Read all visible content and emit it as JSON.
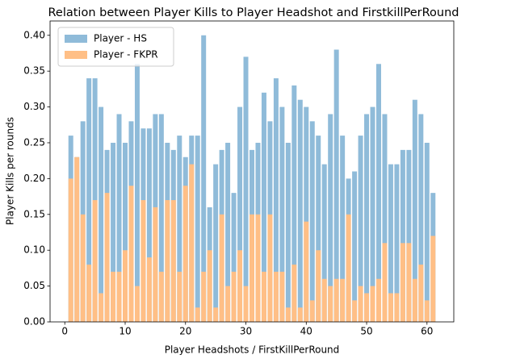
{
  "chart_data": {
    "type": "bar",
    "title": "Relation between Player Kills to Player Headshot and FirstkillPerRound",
    "x_label": "Player Headshots / FirstKillPerRound",
    "y_label": "Player Kills per rounds",
    "x": [
      1,
      2,
      3,
      4,
      5,
      6,
      7,
      8,
      9,
      10,
      11,
      12,
      13,
      14,
      15,
      16,
      17,
      18,
      19,
      20,
      21,
      22,
      23,
      24,
      25,
      26,
      27,
      28,
      29,
      30,
      31,
      32,
      33,
      34,
      35,
      36,
      37,
      38,
      39,
      40,
      41,
      42,
      43,
      44,
      45,
      46,
      47,
      48,
      49,
      50,
      51,
      52,
      53,
      54,
      55,
      56,
      57,
      58,
      59,
      60,
      61
    ],
    "series": [
      {
        "name": "Player - HS",
        "color": "#8fbbd9",
        "values": [
          0.26,
          0.23,
          0.28,
          0.34,
          0.34,
          0.3,
          0.24,
          0.25,
          0.29,
          0.25,
          0.28,
          0.36,
          0.27,
          0.27,
          0.29,
          0.29,
          0.25,
          0.24,
          0.26,
          0.23,
          0.26,
          0.26,
          0.4,
          0.16,
          0.22,
          0.24,
          0.25,
          0.18,
          0.3,
          0.37,
          0.24,
          0.25,
          0.32,
          0.28,
          0.34,
          0.3,
          0.25,
          0.33,
          0.31,
          0.3,
          0.28,
          0.26,
          0.22,
          0.29,
          0.38,
          0.26,
          0.2,
          0.21,
          0.26,
          0.29,
          0.3,
          0.36,
          0.29,
          0.22,
          0.22,
          0.24,
          0.24,
          0.31,
          0.29,
          0.25,
          0.18
        ]
      },
      {
        "name": "Player - FKPR",
        "color": "#ffbf86",
        "values": [
          0.2,
          0.23,
          0.15,
          0.08,
          0.17,
          0.04,
          0.18,
          0.07,
          0.07,
          0.1,
          0.19,
          0.05,
          0.17,
          0.09,
          0.16,
          0.07,
          0.17,
          0.17,
          0.07,
          0.19,
          0.22,
          0.02,
          0.07,
          0.1,
          0.02,
          0.15,
          0.05,
          0.07,
          0.1,
          0.05,
          0.15,
          0.15,
          0.07,
          0.15,
          0.07,
          0.07,
          0.02,
          0.08,
          0.02,
          0.14,
          0.03,
          0.1,
          0.06,
          0.05,
          0.06,
          0.06,
          0.15,
          0.03,
          0.05,
          0.04,
          0.05,
          0.06,
          0.11,
          0.04,
          0.04,
          0.11,
          0.11,
          0.06,
          0.08,
          0.03,
          0.12
        ]
      }
    ],
    "xlim": [
      -2.44,
      64.44
    ],
    "xticks": [
      0,
      10,
      20,
      30,
      40,
      50,
      60
    ],
    "ylim": [
      0,
      0.42
    ],
    "yticks": [
      {
        "value": 0,
        "label": "0.00"
      },
      {
        "value": 0.05,
        "label": "0.05"
      },
      {
        "value": 0.1,
        "label": "0.10"
      },
      {
        "value": 0.15,
        "label": "0.15"
      },
      {
        "value": 0.2,
        "label": "0.20"
      },
      {
        "value": 0.25,
        "label": "0.25"
      },
      {
        "value": 0.3,
        "label": "0.30"
      },
      {
        "value": 0.35,
        "label": "0.35"
      },
      {
        "value": 0.4,
        "label": "0.40"
      }
    ],
    "bar_width": 0.8,
    "legend": "upper left"
  }
}
